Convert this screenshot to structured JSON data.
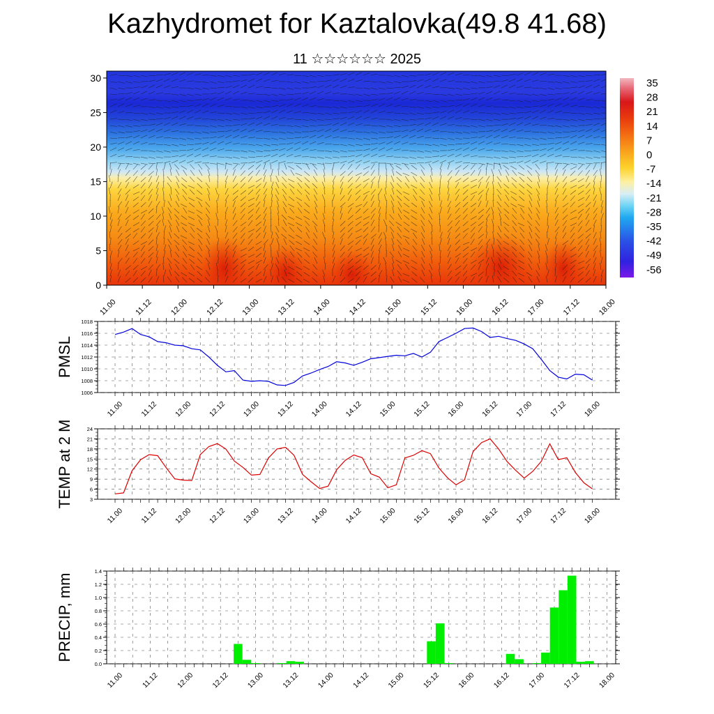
{
  "page": {
    "title": "Kazhydromet for Kaztalovka(49.8 41.68)",
    "subtitle": "11 ☆☆☆☆☆☆ 2025"
  },
  "chart_data": [
    {
      "type": "heatmap",
      "title": "",
      "xlabel": "",
      "ylabel": "",
      "x_tick_labels": [
        "11.00",
        "11.12",
        "12.00",
        "12.12",
        "13.00",
        "13.12",
        "14.00",
        "14.12",
        "15.00",
        "15.12",
        "16.00",
        "16.12",
        "17.00",
        "17.12",
        "18.00"
      ],
      "y_tick_labels": [
        "0",
        "5",
        "10",
        "15",
        "20",
        "25",
        "30"
      ],
      "ylim": [
        0,
        31
      ],
      "colorbar_labels": [
        "35",
        "28",
        "21",
        "14",
        "7",
        "0",
        "-7",
        "-14",
        "-21",
        "-28",
        "-35",
        "-42",
        "-49",
        "-56"
      ],
      "colorbar_range": [
        -60,
        38
      ],
      "overlay": "wind barbs"
    },
    {
      "type": "line",
      "ylabel": "PMSL",
      "color": "#0000dd",
      "x_tick_labels": [
        "11.00",
        "11.12",
        "12.00",
        "12.12",
        "13.00",
        "13.12",
        "14.00",
        "14.12",
        "15.00",
        "15.12",
        "16.00",
        "16.12",
        "17.00",
        "17.12",
        "18.00"
      ],
      "y_ticks": [
        "1006",
        "1008",
        "1010",
        "1012",
        "1014",
        "1016",
        "1018"
      ],
      "ylim": [
        1006,
        1018
      ],
      "values": [
        1015.8,
        1016.2,
        1016.8,
        1015.8,
        1015.4,
        1014.6,
        1014.4,
        1014.0,
        1013.9,
        1013.4,
        1013.2,
        1012.0,
        1010.6,
        1009.5,
        1009.7,
        1008.1,
        1007.9,
        1008.0,
        1007.9,
        1007.3,
        1007.2,
        1007.7,
        1008.8,
        1009.3,
        1009.9,
        1010.4,
        1011.2,
        1011.0,
        1010.6,
        1011.1,
        1011.7,
        1011.9,
        1012.1,
        1012.3,
        1012.2,
        1012.6,
        1012.0,
        1012.8,
        1014.6,
        1015.3,
        1016.0,
        1016.8,
        1016.9,
        1016.3,
        1015.3,
        1015.5,
        1015.1,
        1014.8,
        1014.2,
        1013.4,
        1011.6,
        1009.7,
        1008.6,
        1008.3,
        1009.1,
        1009.0,
        1008.1
      ]
    },
    {
      "type": "line",
      "ylabel": "TEMP at 2 M",
      "color": "#dd0000",
      "x_tick_labels": [
        "11.00",
        "11.12",
        "12.00",
        "12.12",
        "13.00",
        "13.12",
        "14.00",
        "14.12",
        "15.00",
        "15.12",
        "16.00",
        "16.12",
        "17.00",
        "17.12",
        "18.00"
      ],
      "y_ticks": [
        "3",
        "6",
        "9",
        "12",
        "15",
        "18",
        "21",
        "24"
      ],
      "ylim": [
        3,
        24
      ],
      "values": [
        4.6,
        4.9,
        11.5,
        14.8,
        16.3,
        16.0,
        12.4,
        9.1,
        8.7,
        8.6,
        16.3,
        18.7,
        19.6,
        18.0,
        14.4,
        12.5,
        10.2,
        10.4,
        15.3,
        18.0,
        18.5,
        16.1,
        10.4,
        8.2,
        6.2,
        6.9,
        11.8,
        14.6,
        16.2,
        15.4,
        10.6,
        9.6,
        6.4,
        7.3,
        15.3,
        16.1,
        17.5,
        16.6,
        12.3,
        9.4,
        7.3,
        8.8,
        17.2,
        19.9,
        21.0,
        18.0,
        14.2,
        11.6,
        9.3,
        11.3,
        14.3,
        19.5,
        14.8,
        15.4,
        11.0,
        7.9,
        6.1
      ]
    },
    {
      "type": "bar",
      "ylabel": "PRECIP, mm",
      "color": "#00ee00",
      "x_tick_labels": [
        "11.00",
        "11.12",
        "12.00",
        "12.12",
        "13.00",
        "13.12",
        "14.00",
        "14.12",
        "15.00",
        "15.12",
        "16.00",
        "16.12",
        "17.00",
        "17.12",
        "18.00"
      ],
      "y_ticks": [
        "0.0",
        "0.2",
        "0.4",
        "0.6",
        "0.8",
        "1.0",
        "1.2",
        "1.4"
      ],
      "ylim": [
        0,
        1.4
      ],
      "bars": [
        {
          "t": 14.0,
          "v": 0.3
        },
        {
          "t": 15.0,
          "v": 0.06
        },
        {
          "t": 16.0,
          "v": 0.01
        },
        {
          "t": 19.0,
          "v": 0.01
        },
        {
          "t": 20.0,
          "v": 0.04
        },
        {
          "t": 21.0,
          "v": 0.03
        },
        {
          "t": 36.0,
          "v": 0.34
        },
        {
          "t": 37.0,
          "v": 0.61
        },
        {
          "t": 38.0,
          "v": 0.01
        },
        {
          "t": 45.0,
          "v": 0.15
        },
        {
          "t": 46.0,
          "v": 0.07
        },
        {
          "t": 48.0,
          "v": 0.01
        },
        {
          "t": 49.0,
          "v": 0.17
        },
        {
          "t": 50.0,
          "v": 0.85
        },
        {
          "t": 51.0,
          "v": 1.11
        },
        {
          "t": 52.0,
          "v": 1.33
        },
        {
          "t": 53.0,
          "v": 0.03
        },
        {
          "t": 54.0,
          "v": 0.04
        }
      ]
    }
  ]
}
